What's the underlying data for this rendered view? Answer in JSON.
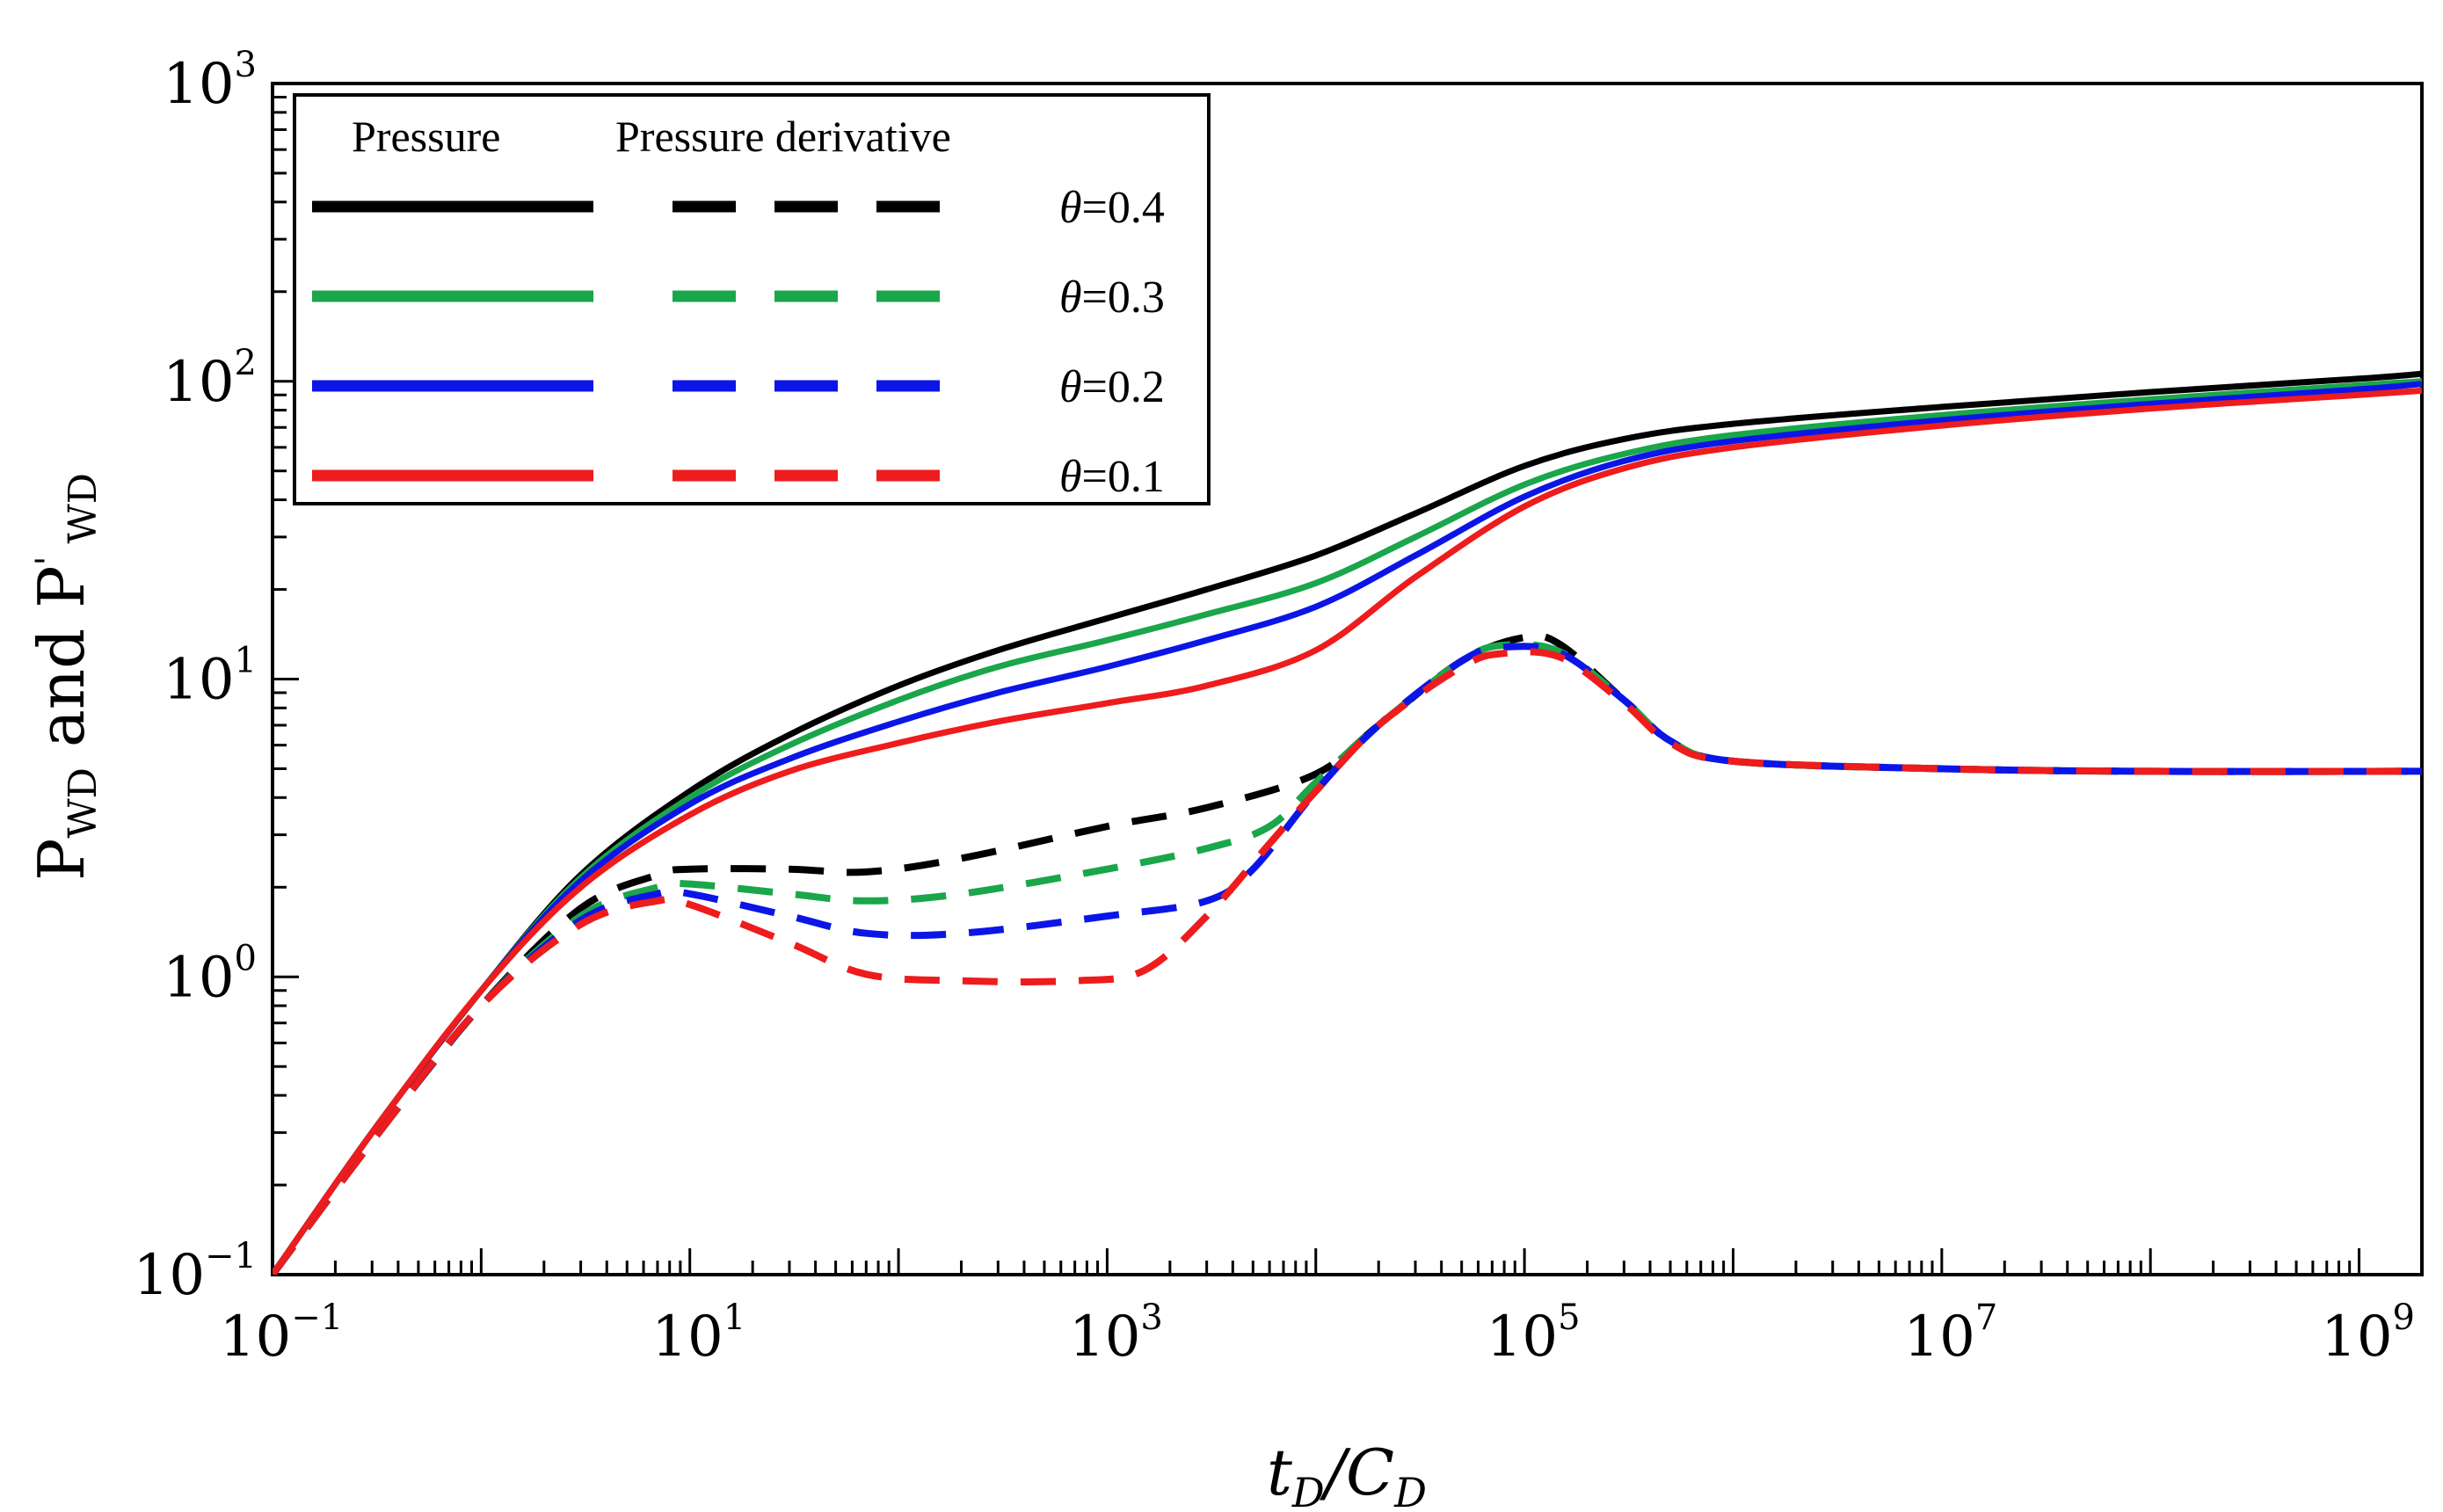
{
  "chart_data": {
    "type": "line",
    "x_scale": "log",
    "y_scale": "log",
    "xlim": [
      0.1,
      2000000000
    ],
    "ylim": [
      0.1,
      1000
    ],
    "xlabel": "t_D/C_D",
    "ylabel": "P_WD and P'_WD",
    "x_ticks": [
      {
        "value": 0.1,
        "base": "10",
        "exp": "−1"
      },
      {
        "value": 10,
        "base": "10",
        "exp": "1"
      },
      {
        "value": 1000,
        "base": "10",
        "exp": "3"
      },
      {
        "value": 100000,
        "base": "10",
        "exp": "5"
      },
      {
        "value": 10000000,
        "base": "10",
        "exp": "7"
      },
      {
        "value": 1000000000,
        "base": "10",
        "exp": "9"
      }
    ],
    "y_ticks": [
      {
        "value": 0.1,
        "base": "10",
        "exp": "−1"
      },
      {
        "value": 1,
        "base": "10",
        "exp": "0"
      },
      {
        "value": 10,
        "base": "10",
        "exp": "1"
      },
      {
        "value": 100,
        "base": "10",
        "exp": "2"
      },
      {
        "value": 1000,
        "base": "10",
        "exp": "3"
      }
    ],
    "legend": {
      "position": "top-left",
      "header_pressure": "Pressure",
      "header_derivative": "Pressure derivative"
    },
    "series": [
      {
        "name": "θ=0.4",
        "symbol": "θ",
        "value_label": "=0.4",
        "color": "#000000",
        "pressure": [
          [
            0.1,
            0.1
          ],
          [
            0.3,
            0.3
          ],
          [
            1,
            0.9
          ],
          [
            3,
            2.2
          ],
          [
            10,
            4.2
          ],
          [
            30,
            6.5
          ],
          [
            100,
            9.5
          ],
          [
            300,
            12.5
          ],
          [
            1000,
            16
          ],
          [
            3000,
            20
          ],
          [
            10000,
            26
          ],
          [
            30000,
            36
          ],
          [
            100000,
            52
          ],
          [
            300000,
            64
          ],
          [
            1000000,
            72
          ],
          [
            10000000,
            82
          ],
          [
            100000000,
            92
          ],
          [
            1000000000,
            102
          ],
          [
            2000000000,
            106
          ]
        ],
        "derivative": [
          [
            0.1,
            0.1
          ],
          [
            0.3,
            0.28
          ],
          [
            1,
            0.8
          ],
          [
            3,
            1.7
          ],
          [
            7,
            2.2
          ],
          [
            10,
            2.3
          ],
          [
            30,
            2.3
          ],
          [
            70,
            2.25
          ],
          [
            200,
            2.5
          ],
          [
            1000,
            3.2
          ],
          [
            3000,
            3.7
          ],
          [
            10000,
            4.8
          ],
          [
            20000,
            7
          ],
          [
            50000,
            11.5
          ],
          [
            100000,
            13.8
          ],
          [
            150000,
            13
          ],
          [
            300000,
            8.5
          ],
          [
            500000,
            6.2
          ],
          [
            1000000,
            5.3
          ],
          [
            10000000,
            5
          ],
          [
            100000000,
            4.9
          ],
          [
            2000000000,
            4.9
          ]
        ]
      },
      {
        "name": "θ=0.3",
        "symbol": "θ",
        "value_label": "=0.3",
        "color": "#1aa64a",
        "pressure": [
          [
            0.1,
            0.1
          ],
          [
            0.3,
            0.3
          ],
          [
            1,
            0.9
          ],
          [
            3,
            2.15
          ],
          [
            10,
            4
          ],
          [
            30,
            6
          ],
          [
            100,
            8.5
          ],
          [
            300,
            11
          ],
          [
            1000,
            13.5
          ],
          [
            3000,
            16.5
          ],
          [
            10000,
            21
          ],
          [
            30000,
            30
          ],
          [
            100000,
            45
          ],
          [
            300000,
            57
          ],
          [
            1000000,
            66
          ],
          [
            10000000,
            77
          ],
          [
            100000000,
            87
          ],
          [
            1000000000,
            97
          ],
          [
            2000000000,
            100
          ]
        ],
        "derivative": [
          [
            0.1,
            0.1
          ],
          [
            0.3,
            0.28
          ],
          [
            1,
            0.8
          ],
          [
            3,
            1.6
          ],
          [
            7,
            2
          ],
          [
            10,
            2.05
          ],
          [
            30,
            1.9
          ],
          [
            70,
            1.8
          ],
          [
            200,
            1.9
          ],
          [
            1000,
            2.3
          ],
          [
            3000,
            2.7
          ],
          [
            6000,
            3.2
          ],
          [
            10000,
            4.5
          ],
          [
            20000,
            7
          ],
          [
            50000,
            11.5
          ],
          [
            80000,
            13
          ],
          [
            150000,
            12.3
          ],
          [
            300000,
            8.5
          ],
          [
            500000,
            6.2
          ],
          [
            1000000,
            5.3
          ],
          [
            10000000,
            5
          ],
          [
            100000000,
            4.9
          ],
          [
            2000000000,
            4.9
          ]
        ]
      },
      {
        "name": "θ=0.2",
        "symbol": "θ",
        "value_label": "=0.2",
        "color": "#0b16e6",
        "pressure": [
          [
            0.1,
            0.1
          ],
          [
            0.3,
            0.3
          ],
          [
            1,
            0.9
          ],
          [
            3,
            2.1
          ],
          [
            10,
            3.8
          ],
          [
            30,
            5.4
          ],
          [
            100,
            7.2
          ],
          [
            300,
            9
          ],
          [
            1000,
            11
          ],
          [
            3000,
            13.5
          ],
          [
            10000,
            17.5
          ],
          [
            30000,
            26
          ],
          [
            100000,
            41
          ],
          [
            300000,
            54
          ],
          [
            1000000,
            63
          ],
          [
            10000000,
            74
          ],
          [
            100000000,
            84
          ],
          [
            1000000000,
            94
          ],
          [
            2000000000,
            98
          ]
        ],
        "derivative": [
          [
            0.1,
            0.1
          ],
          [
            0.3,
            0.28
          ],
          [
            1,
            0.8
          ],
          [
            3,
            1.55
          ],
          [
            7,
            1.9
          ],
          [
            10,
            1.9
          ],
          [
            30,
            1.6
          ],
          [
            70,
            1.4
          ],
          [
            200,
            1.4
          ],
          [
            1000,
            1.6
          ],
          [
            3000,
            1.8
          ],
          [
            5000,
            2.3
          ],
          [
            10000,
            4.2
          ],
          [
            20000,
            7
          ],
          [
            50000,
            11.5
          ],
          [
            80000,
            12.8
          ],
          [
            150000,
            12.2
          ],
          [
            300000,
            8.5
          ],
          [
            500000,
            6.2
          ],
          [
            1000000,
            5.3
          ],
          [
            10000000,
            5
          ],
          [
            100000000,
            4.9
          ],
          [
            2000000000,
            4.9
          ]
        ]
      },
      {
        "name": "θ=0.1",
        "symbol": "θ",
        "value_label": "=0.1",
        "color": "#ee1c1c",
        "pressure": [
          [
            0.1,
            0.1
          ],
          [
            0.3,
            0.3
          ],
          [
            1,
            0.9
          ],
          [
            3,
            2
          ],
          [
            10,
            3.5
          ],
          [
            30,
            4.9
          ],
          [
            100,
            6.1
          ],
          [
            300,
            7.2
          ],
          [
            1000,
            8.3
          ],
          [
            3000,
            9.5
          ],
          [
            10000,
            12.5
          ],
          [
            30000,
            22
          ],
          [
            100000,
            38
          ],
          [
            300000,
            51
          ],
          [
            1000000,
            60
          ],
          [
            10000000,
            71
          ],
          [
            100000000,
            81
          ],
          [
            1000000000,
            90
          ],
          [
            2000000000,
            93
          ]
        ],
        "derivative": [
          [
            0.1,
            0.1
          ],
          [
            0.3,
            0.28
          ],
          [
            1,
            0.8
          ],
          [
            3,
            1.5
          ],
          [
            7,
            1.8
          ],
          [
            10,
            1.75
          ],
          [
            30,
            1.3
          ],
          [
            70,
            1.02
          ],
          [
            200,
            0.97
          ],
          [
            700,
            0.97
          ],
          [
            1500,
            1.05
          ],
          [
            3000,
            1.6
          ],
          [
            6000,
            2.8
          ],
          [
            10000,
            4.2
          ],
          [
            20000,
            7
          ],
          [
            50000,
            11
          ],
          [
            80000,
            12.2
          ],
          [
            150000,
            11.8
          ],
          [
            300000,
            8.3
          ],
          [
            500000,
            6.1
          ],
          [
            1000000,
            5.3
          ],
          [
            10000000,
            5
          ],
          [
            100000000,
            4.9
          ],
          [
            2000000000,
            4.9
          ]
        ]
      }
    ]
  }
}
